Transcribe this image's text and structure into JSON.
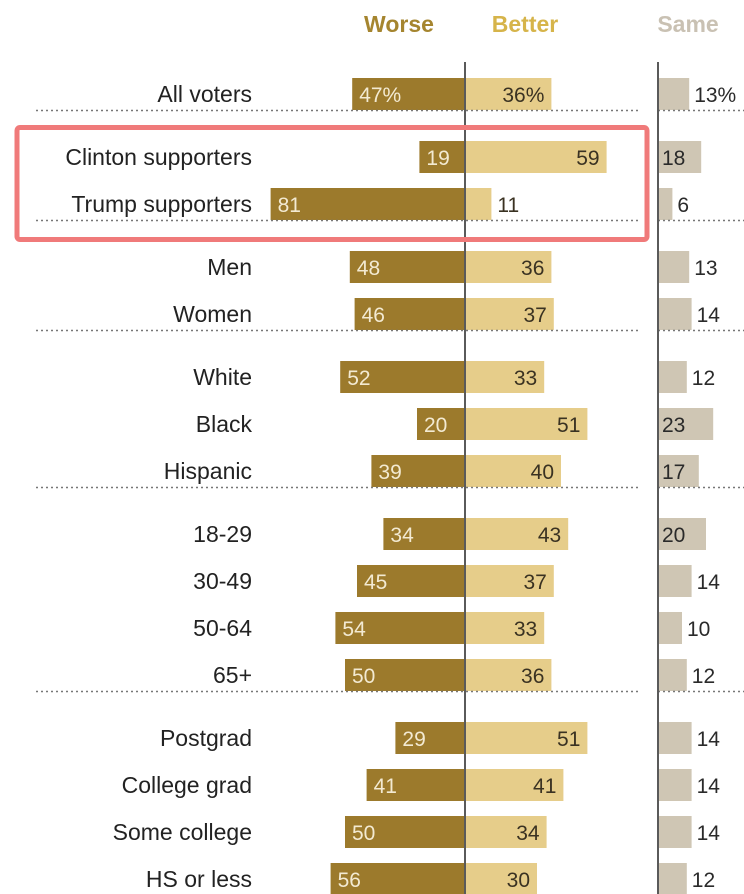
{
  "colors": {
    "worse": "#9c7a2c",
    "better": "#e6cd8a",
    "same": "#cfc6b4",
    "worse_header": "#a5852f",
    "better_header": "#d6b44a",
    "same_header": "#c9c1b3",
    "highlight": "#f07a7a",
    "divider": "#777777"
  },
  "chart_data": {
    "type": "bar",
    "layout": "diverging",
    "headers": {
      "worse": "Worse",
      "better": "Better",
      "same": "Same"
    },
    "groups": [
      {
        "rows": [
          {
            "label": "All voters",
            "worse": 47,
            "better": 36,
            "same": 13,
            "worse_text": "47%",
            "better_text": "36%",
            "same_text": "13%"
          }
        ]
      },
      {
        "highlighted": true,
        "rows": [
          {
            "label": "Clinton supporters",
            "worse": 19,
            "better": 59,
            "same": 18,
            "worse_text": "19",
            "better_text": "59",
            "same_text": "18"
          },
          {
            "label": "Trump supporters",
            "worse": 81,
            "better": 11,
            "same": 6,
            "worse_text": "81",
            "better_text": "11",
            "same_text": "6"
          }
        ]
      },
      {
        "rows": [
          {
            "label": "Men",
            "worse": 48,
            "better": 36,
            "same": 13,
            "worse_text": "48",
            "better_text": "36",
            "same_text": "13"
          },
          {
            "label": "Women",
            "worse": 46,
            "better": 37,
            "same": 14,
            "worse_text": "46",
            "better_text": "37",
            "same_text": "14"
          }
        ]
      },
      {
        "rows": [
          {
            "label": "White",
            "worse": 52,
            "better": 33,
            "same": 12,
            "worse_text": "52",
            "better_text": "33",
            "same_text": "12"
          },
          {
            "label": "Black",
            "worse": 20,
            "better": 51,
            "same": 23,
            "worse_text": "20",
            "better_text": "51",
            "same_text": "23"
          },
          {
            "label": "Hispanic",
            "worse": 39,
            "better": 40,
            "same": 17,
            "worse_text": "39",
            "better_text": "40",
            "same_text": "17"
          }
        ]
      },
      {
        "rows": [
          {
            "label": "18-29",
            "worse": 34,
            "better": 43,
            "same": 20,
            "worse_text": "34",
            "better_text": "43",
            "same_text": "20"
          },
          {
            "label": "30-49",
            "worse": 45,
            "better": 37,
            "same": 14,
            "worse_text": "45",
            "better_text": "37",
            "same_text": "14"
          },
          {
            "label": "50-64",
            "worse": 54,
            "better": 33,
            "same": 10,
            "worse_text": "54",
            "better_text": "33",
            "same_text": "10"
          },
          {
            "label": "65+",
            "worse": 50,
            "better": 36,
            "same": 12,
            "worse_text": "50",
            "better_text": "36",
            "same_text": "12"
          }
        ]
      },
      {
        "rows": [
          {
            "label": "Postgrad",
            "worse": 29,
            "better": 51,
            "same": 14,
            "worse_text": "29",
            "better_text": "51",
            "same_text": "14"
          },
          {
            "label": "College grad",
            "worse": 41,
            "better": 41,
            "same": 14,
            "worse_text": "41",
            "better_text": "41",
            "same_text": "14"
          },
          {
            "label": "Some college",
            "worse": 50,
            "better": 34,
            "same": 14,
            "worse_text": "50",
            "better_text": "34",
            "same_text": "14"
          },
          {
            "label": "HS or less",
            "worse": 56,
            "better": 30,
            "same": 12,
            "worse_text": "56",
            "better_text": "30",
            "same_text": "12"
          }
        ]
      }
    ]
  }
}
